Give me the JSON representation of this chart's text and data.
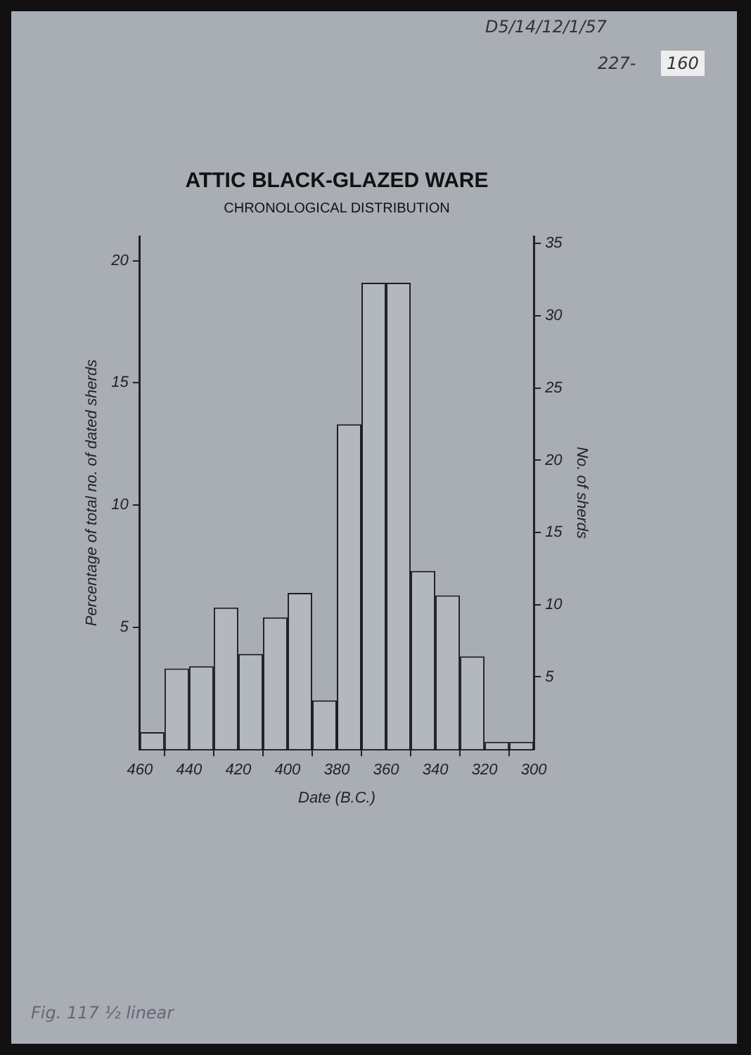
{
  "chart_data": {
    "type": "histogram",
    "title": "ATTIC BLACK-GLAZED WARE",
    "subtitle": "CHRONOLOGICAL DISTRIBUTION",
    "xlabel": "Date (B.C.)",
    "ylabel": "Percentage of total no. of dated sherds",
    "y2label": "No. of sherds",
    "bins": [
      300,
      310,
      320,
      330,
      340,
      350,
      360,
      370,
      380,
      390,
      400,
      410,
      420,
      430,
      440,
      450,
      460
    ],
    "values": [
      0.3,
      0.3,
      3.8,
      6.3,
      7.3,
      19.1,
      19.1,
      13.3,
      2.0,
      6.4,
      5.4,
      3.9,
      5.8,
      3.4,
      3.3,
      0.7
    ],
    "color": "#b3b7be",
    "xlim": [
      460,
      300
    ],
    "xticks": [
      460,
      440,
      420,
      400,
      380,
      360,
      340,
      320,
      300
    ],
    "ylim": [
      0,
      21
    ],
    "yticks": [
      5,
      10,
      15,
      20
    ],
    "y2lim": [
      0,
      35.5
    ],
    "y2ticks": [
      5,
      10,
      15,
      20,
      25,
      30,
      35
    ],
    "grid": false,
    "legend": false,
    "annotations": [
      "D5/14/12/1/57",
      "227-",
      "160",
      "Fig. 117 ½ linear"
    ]
  }
}
